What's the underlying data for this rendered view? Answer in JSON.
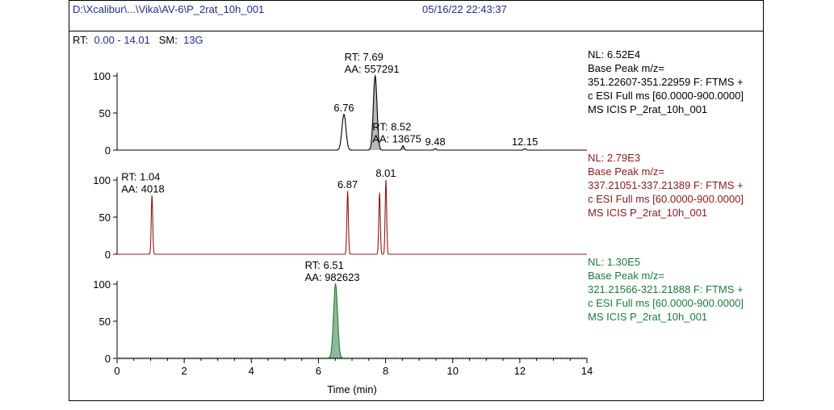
{
  "header": {
    "path": "D:\\Xcalibur\\...\\Vika\\AV-6\\P_2rat_10h_001",
    "timestamp": "05/16/22 22:43:37",
    "rt_label": "RT:",
    "rt_value": "0.00 - 14.01",
    "sm_label": "SM:",
    "sm_value": "13G"
  },
  "chart_data": {
    "type": "line",
    "xlabel": "Time (min)",
    "xlim": [
      0,
      14
    ],
    "xticks": [
      0,
      2,
      4,
      6,
      8,
      10,
      12,
      14
    ],
    "ylim": [
      0,
      100
    ],
    "yticks": [
      0,
      50,
      100
    ],
    "panels": [
      {
        "color": "#000000",
        "fill": "#b8b8b8",
        "info": [
          "NL: 6.52E4",
          "Base Peak m/z=",
          "351.22607-351.22959 F: FTMS +",
          "c ESI Full ms [60.0000-900.0000]",
          "MS  ICIS P_2rat_10h_001"
        ],
        "peaks": [
          {
            "rt": 6.76,
            "height": 48,
            "width": 0.06,
            "filled": false
          },
          {
            "rt": 7.69,
            "height": 100,
            "width": 0.055,
            "filled": true
          },
          {
            "rt": 8.52,
            "height": 6,
            "width": 0.03,
            "filled": true
          },
          {
            "rt": 9.48,
            "height": 2,
            "width": 0.03,
            "filled": false
          },
          {
            "rt": 12.15,
            "height": 2,
            "width": 0.03,
            "filled": false
          }
        ],
        "labels": [
          {
            "rt": 6.76,
            "lines": [
              "6.76"
            ]
          },
          {
            "rt": 7.69,
            "lines": [
              "RT: 7.69",
              "AA: 557291"
            ]
          },
          {
            "rt": 8.52,
            "lines": [
              "RT: 8.52",
              "AA: 13675"
            ]
          },
          {
            "rt": 9.48,
            "lines": [
              "9.48"
            ]
          },
          {
            "rt": 12.15,
            "lines": [
              "12.15"
            ]
          }
        ]
      },
      {
        "color": "#8b1a1a",
        "fill": "#c9a0a0",
        "info": [
          "NL: 2.79E3",
          "Base Peak m/z=",
          "337.21051-337.21389 F: FTMS +",
          "c ESI Full ms [60.0000-900.0000]",
          "MS  ICIS P_2rat_10h_001"
        ],
        "peaks": [
          {
            "rt": 1.04,
            "height": 79,
            "width": 0.022,
            "filled": false
          },
          {
            "rt": 6.87,
            "height": 85,
            "width": 0.022,
            "filled": false
          },
          {
            "rt": 7.82,
            "height": 83,
            "width": 0.022,
            "filled": false
          },
          {
            "rt": 8.01,
            "height": 100,
            "width": 0.022,
            "filled": false
          }
        ],
        "labels": [
          {
            "rt": 1.04,
            "lines": [
              "RT: 1.04",
              "AA: 4018"
            ]
          },
          {
            "rt": 6.87,
            "lines": [
              "6.87"
            ]
          },
          {
            "rt": 8.01,
            "lines": [
              "8.01"
            ]
          }
        ]
      },
      {
        "color": "#1e7b3c",
        "fill": "#8fb89a",
        "info": [
          "NL: 1.30E5",
          "Base Peak m/z=",
          "321.21566-321.21888 F: FTMS +",
          "c ESI Full ms [60.0000-900.0000]",
          "MS  ICIS P_2rat_10h_001"
        ],
        "peaks": [
          {
            "rt": 6.51,
            "height": 100,
            "width": 0.06,
            "filled": true
          }
        ],
        "labels": [
          {
            "rt": 6.51,
            "lines": [
              "RT: 6.51",
              "AA: 982623"
            ]
          }
        ]
      }
    ]
  }
}
